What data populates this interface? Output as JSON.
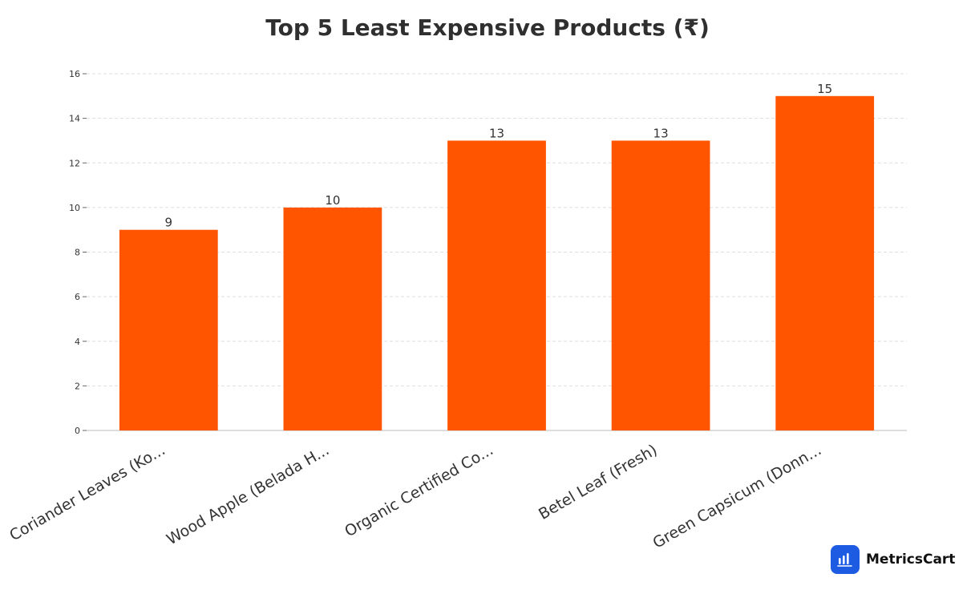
{
  "chart_data": {
    "type": "bar",
    "title": "Top 5 Least Expensive Products (₹)",
    "categories": [
      "Coriander Leaves (Ko...",
      "Wood Apple (Belada H...",
      "Organic Certified Co...",
      "Betel Leaf (Fresh)",
      "Green Capsicum (Donn..."
    ],
    "values": [
      9,
      10,
      13,
      13,
      15
    ],
    "xlabel": "",
    "ylabel": "",
    "ylim": [
      0,
      16
    ],
    "yticks": [
      0,
      2,
      4,
      6,
      8,
      10,
      12,
      14,
      16
    ],
    "grid": true,
    "bar_color": "#ff5500"
  },
  "brand": {
    "name": "MetricsCart",
    "icon": "bar-chart-icon",
    "color": "#1d5be3"
  }
}
